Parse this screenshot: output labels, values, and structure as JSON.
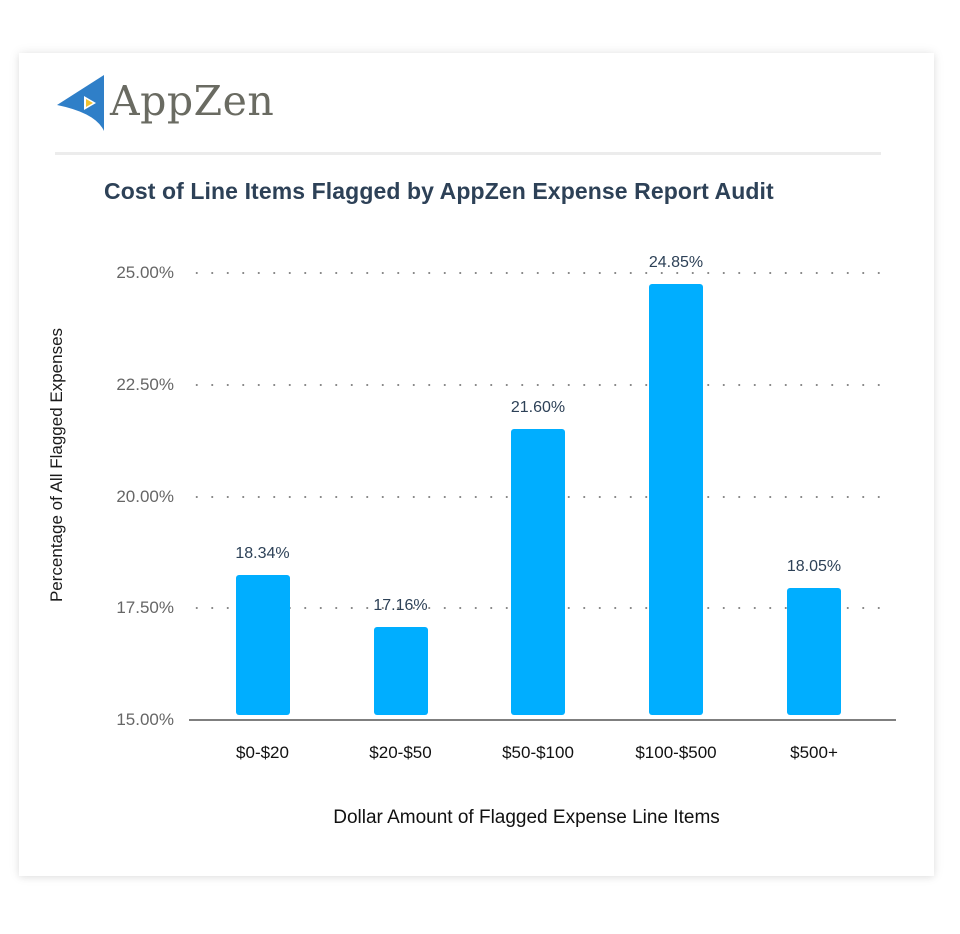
{
  "brand": {
    "name": "AppZen",
    "logo_icon": "appzen-sail-icon",
    "colors": {
      "logo_blue": "#2f7fc8",
      "logo_yellow": "#f3c330",
      "logo_text": "#6a6b62"
    }
  },
  "colors": {
    "bar": "#00aeff",
    "title": "#2d4157",
    "tick": "#666666",
    "axis": "#7f7f7f",
    "grid": "#8a8a8a"
  },
  "chart_data": {
    "type": "bar",
    "title": "Cost of Line Items Flagged by AppZen Expense Report Audit",
    "xlabel": "Dollar Amount of Flagged Expense Line Items",
    "ylabel": "Percentage of All Flagged Expenses",
    "categories": [
      "$0-$20",
      "$20-$50",
      "$50-$100",
      "$100-$500",
      "$500+"
    ],
    "values": [
      18.34,
      17.16,
      21.6,
      24.85,
      18.05
    ],
    "value_labels": [
      "18.34%",
      "17.16%",
      "21.60%",
      "24.85%",
      "18.05%"
    ],
    "ylim": [
      15,
      25
    ],
    "yticks": [
      15.0,
      17.5,
      20.0,
      22.5,
      25.0
    ],
    "ytick_labels": [
      "15.00%",
      "17.50%",
      "20.00%",
      "22.50%",
      "25.00%"
    ],
    "grid": "horizontal dotted",
    "legend": "none"
  }
}
